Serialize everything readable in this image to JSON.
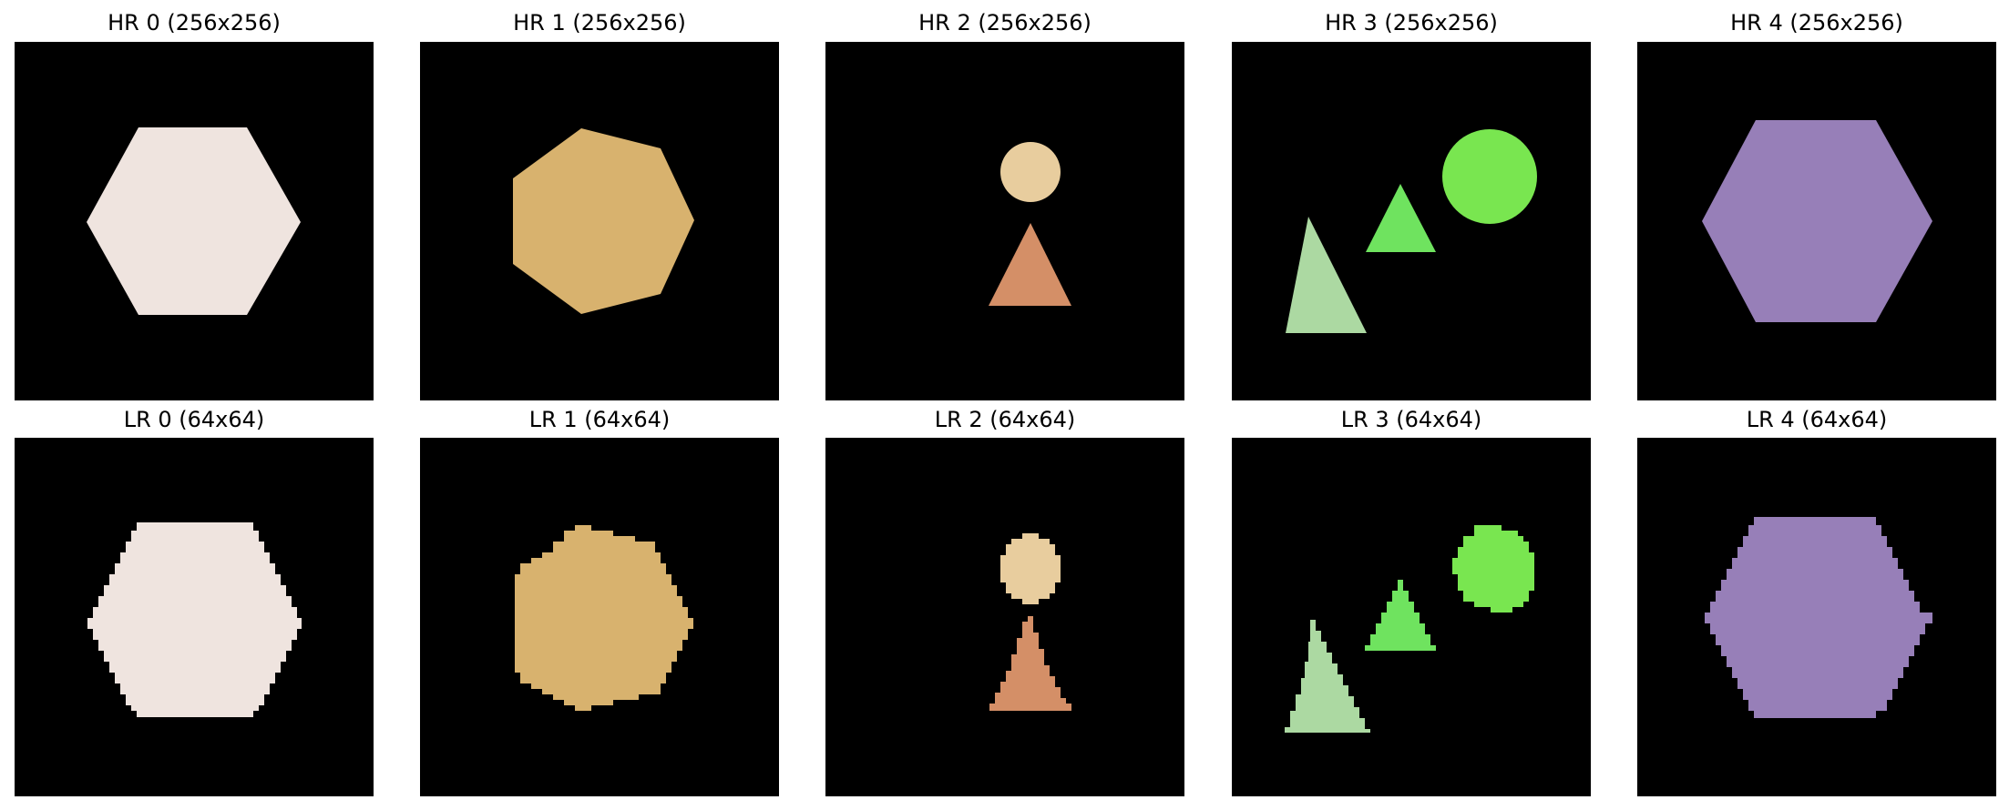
{
  "figure": {
    "background": "#ffffff",
    "panel_background": "#000000",
    "hr_panels": [
      {
        "title": "HR 0 (256x256)",
        "shapes": [
          {
            "kind": "hexagon",
            "color": "#efe4df"
          }
        ]
      },
      {
        "title": "HR 1 (256x256)",
        "shapes": [
          {
            "kind": "heptagon",
            "color": "#d8b26e"
          }
        ]
      },
      {
        "title": "HR 2 (256x256)",
        "shapes": [
          {
            "kind": "circle",
            "color": "#e8cd9e"
          },
          {
            "kind": "triangle",
            "color": "#d48f67"
          }
        ]
      },
      {
        "title": "HR 3 (256x256)",
        "shapes": [
          {
            "kind": "circle",
            "color": "#79e650"
          },
          {
            "kind": "triangle",
            "color": "#6fe35f"
          },
          {
            "kind": "triangle",
            "color": "#acd9a2"
          }
        ]
      },
      {
        "title": "HR 4 (256x256)",
        "shapes": [
          {
            "kind": "hexagon",
            "color": "#977fb8"
          }
        ]
      }
    ],
    "lr_panels": [
      {
        "title": "LR 0 (64x64)",
        "shapes": [
          {
            "kind": "hexagon",
            "color": "#efe4df"
          }
        ]
      },
      {
        "title": "LR 1 (64x64)",
        "shapes": [
          {
            "kind": "heptagon",
            "color": "#d8b26e"
          }
        ]
      },
      {
        "title": "LR 2 (64x64)",
        "shapes": [
          {
            "kind": "circle",
            "color": "#e8cd9e"
          },
          {
            "kind": "triangle",
            "color": "#d48f67"
          }
        ]
      },
      {
        "title": "LR 3 (64x64)",
        "shapes": [
          {
            "kind": "circle",
            "color": "#79e650"
          },
          {
            "kind": "triangle",
            "color": "#6fe35f"
          },
          {
            "kind": "triangle",
            "color": "#acd9a2"
          }
        ]
      },
      {
        "title": "LR 4 (64x64)",
        "shapes": [
          {
            "kind": "hexagon",
            "color": "#977fb8"
          }
        ]
      }
    ]
  }
}
